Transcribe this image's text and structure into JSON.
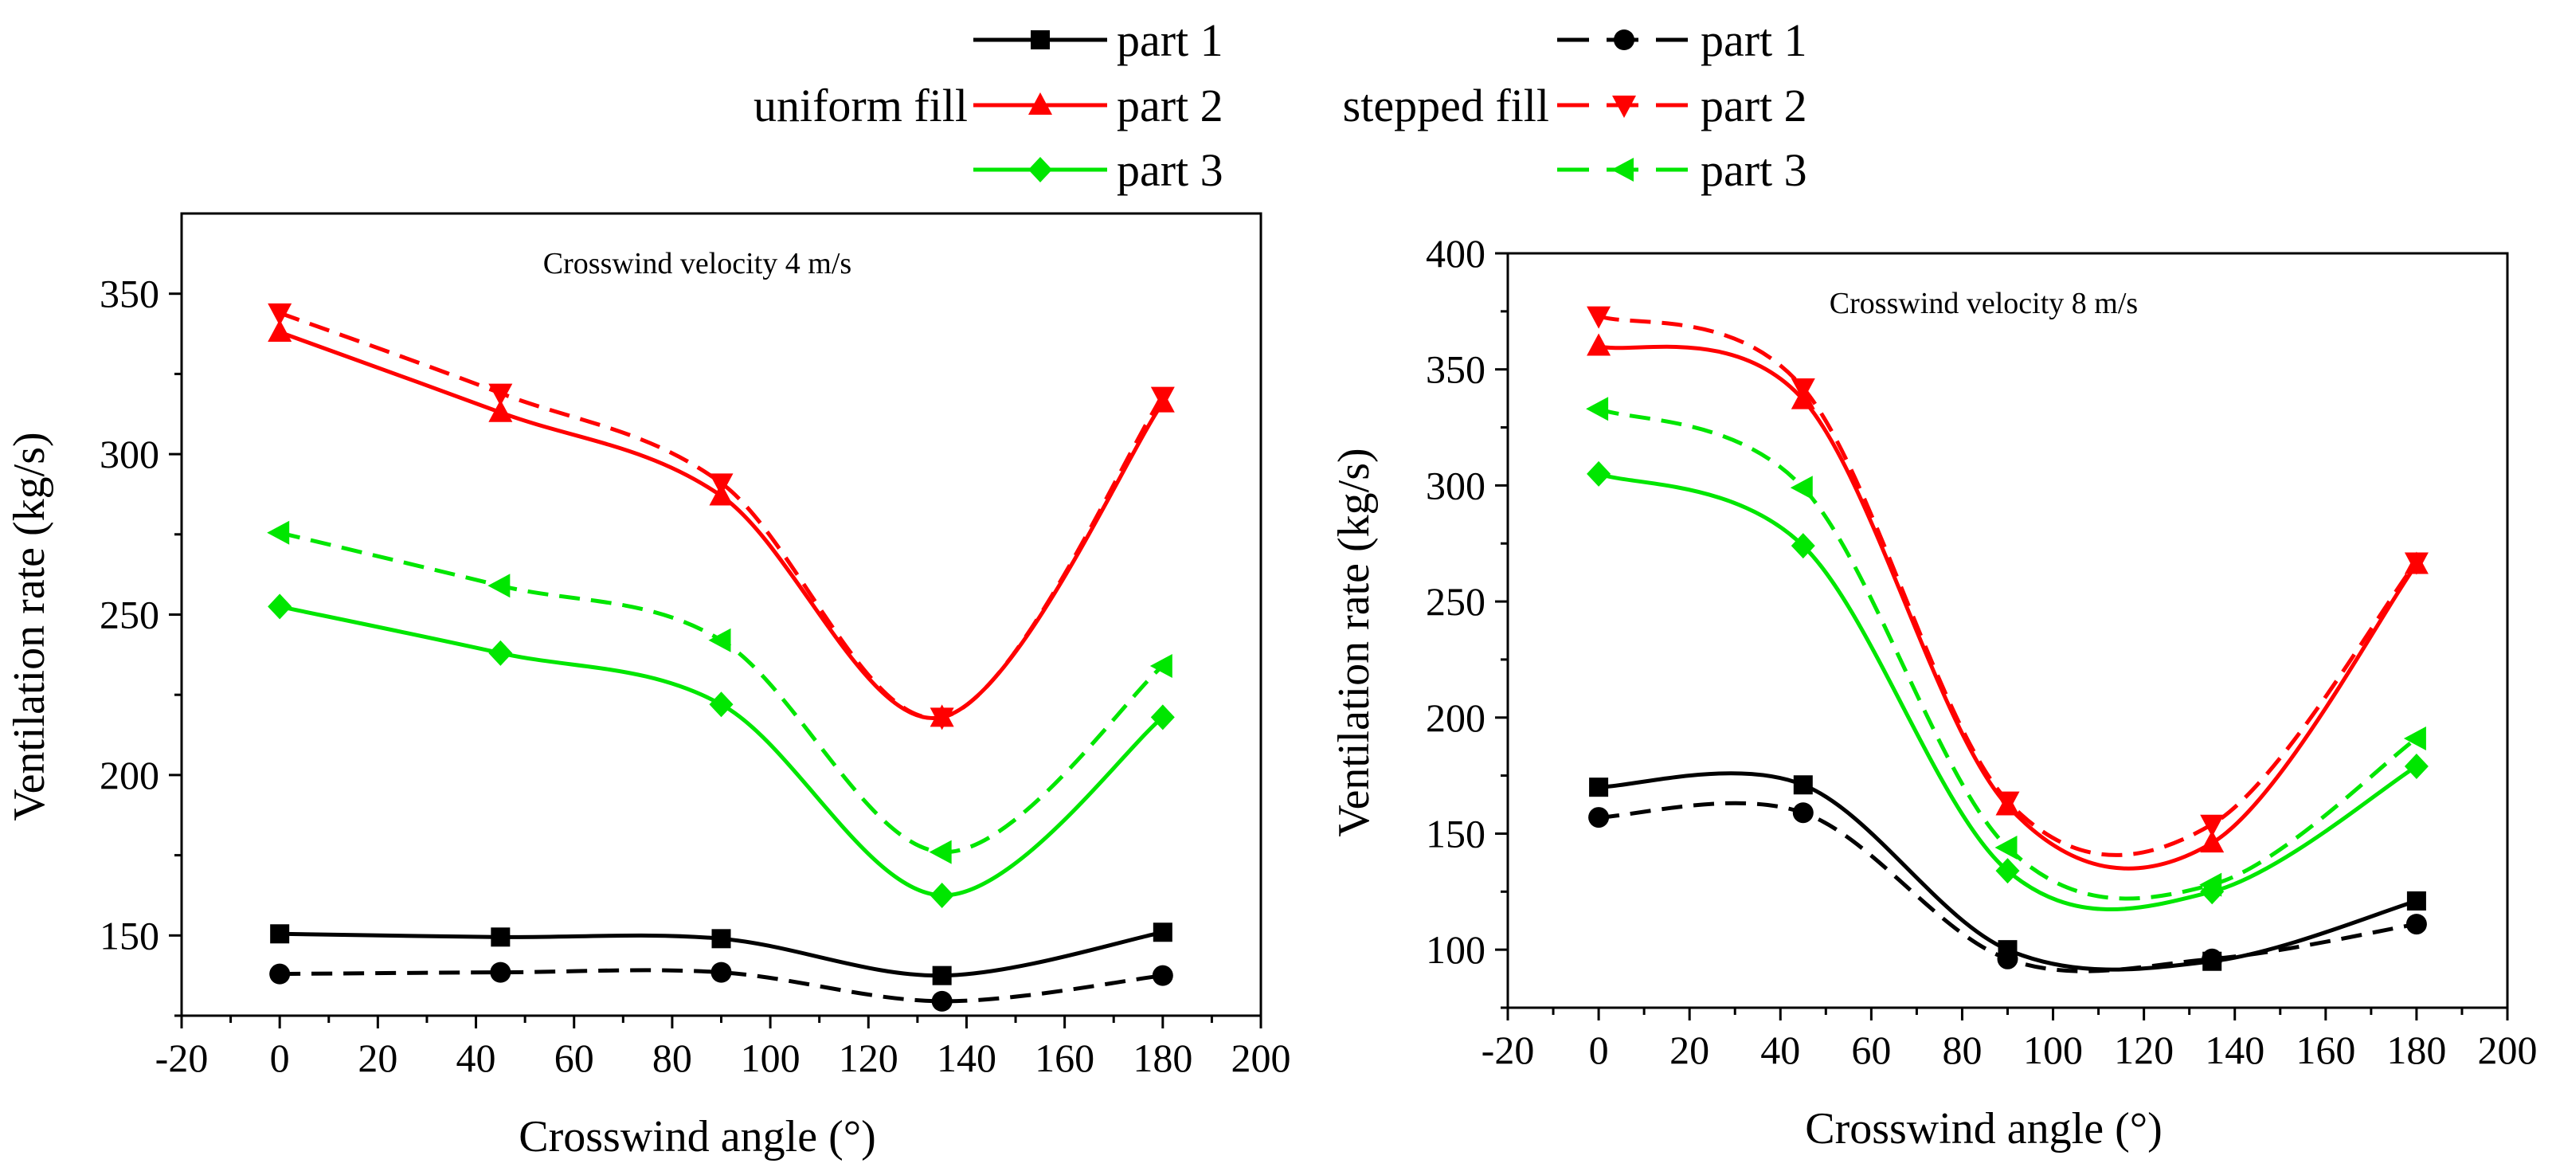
{
  "legend": {
    "uniform_label": "uniform fill",
    "stepped_label": "stepped fill",
    "part_labels": [
      "part 1",
      "part 2",
      "part 3"
    ]
  },
  "colors": {
    "part1": "#000000",
    "part2": "#ff0000",
    "part3": "#00e600"
  },
  "chart_data": [
    {
      "type": "line",
      "title": "Crosswind velocity 4 m/s",
      "xlabel": "Crosswind angle (°)",
      "ylabel": "Ventilation rate (kg/s)",
      "xlim": [
        -20,
        200
      ],
      "ylim": [
        125,
        375
      ],
      "xticks": [
        -20,
        0,
        20,
        40,
        60,
        80,
        100,
        120,
        140,
        160,
        180,
        200
      ],
      "yticks": [
        150,
        200,
        250,
        300,
        350
      ],
      "x": [
        0,
        45,
        90,
        135,
        180
      ],
      "series": [
        {
          "name": "part 1",
          "group": "uniform fill",
          "values": [
            150.5,
            149.5,
            149,
            137.5,
            151
          ]
        },
        {
          "name": "part 2",
          "group": "uniform fill",
          "values": [
            338,
            313,
            287,
            218,
            316
          ]
        },
        {
          "name": "part 3",
          "group": "uniform fill",
          "values": [
            252.5,
            238,
            222,
            162.5,
            218
          ]
        },
        {
          "name": "part 1",
          "group": "stepped fill",
          "values": [
            138,
            138.5,
            138.5,
            129.5,
            137.5
          ]
        },
        {
          "name": "part 2",
          "group": "stepped fill",
          "values": [
            344,
            319,
            291,
            218,
            318
          ]
        },
        {
          "name": "part 3",
          "group": "stepped fill",
          "values": [
            275.5,
            259,
            242,
            176,
            234
          ]
        }
      ]
    },
    {
      "type": "line",
      "title": "Crosswind velocity 8 m/s",
      "xlabel": "Crosswind angle (°)",
      "ylabel": "Ventilation rate (kg/s)",
      "xlim": [
        -20,
        200
      ],
      "ylim": [
        75,
        400
      ],
      "xticks": [
        -20,
        0,
        20,
        40,
        60,
        80,
        100,
        120,
        140,
        160,
        180,
        200
      ],
      "yticks": [
        100,
        150,
        200,
        250,
        300,
        350,
        400
      ],
      "x": [
        0,
        45,
        90,
        135,
        180
      ],
      "series": [
        {
          "name": "part 1",
          "group": "uniform fill",
          "values": [
            170,
            171,
            100,
            95,
            121
          ]
        },
        {
          "name": "part 2",
          "group": "uniform fill",
          "values": [
            360,
            337,
            162,
            146,
            266
          ]
        },
        {
          "name": "part 3",
          "group": "uniform fill",
          "values": [
            305,
            274,
            134,
            125,
            179
          ]
        },
        {
          "name": "part 1",
          "group": "stepped fill",
          "values": [
            157,
            159,
            96,
            96,
            111
          ]
        },
        {
          "name": "part 2",
          "group": "stepped fill",
          "values": [
            373,
            342,
            164,
            154,
            267
          ]
        },
        {
          "name": "part 3",
          "group": "stepped fill",
          "values": [
            333,
            299,
            144,
            128,
            191
          ]
        }
      ]
    }
  ]
}
